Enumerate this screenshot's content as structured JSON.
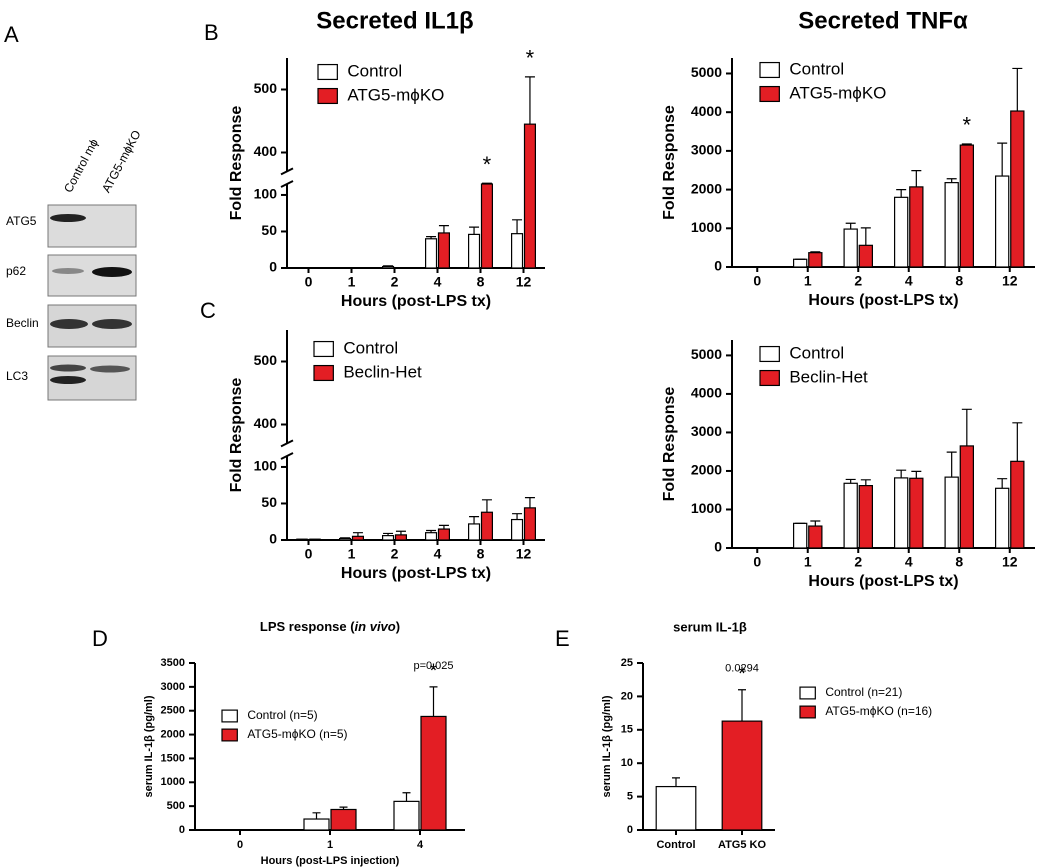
{
  "panel_labels": [
    "A",
    "B",
    "C",
    "D",
    "E"
  ],
  "blot": {
    "lanes": [
      "Control  mϕ",
      "ATG5-mϕKO"
    ],
    "rows": [
      "ATG5",
      "p62",
      "Beclin",
      "LC3"
    ]
  },
  "chart_data": [
    {
      "type": "bar",
      "title": "Secreted IL1β",
      "ylabel": "Fold Response",
      "xlabel": "Hours (post-LPS tx)",
      "categories": [
        "0",
        "1",
        "2",
        "4",
        "8",
        "12"
      ],
      "series": [
        {
          "name": "Control",
          "color": "#ffffff",
          "values": [
            0,
            0,
            2,
            40,
            46,
            47
          ],
          "errors": [
            0,
            0,
            1,
            3,
            10,
            19
          ]
        },
        {
          "name": "ATG5-mϕKO",
          "color": "#e31e24",
          "values": [
            0,
            0,
            0,
            48,
            115,
            445
          ],
          "errors": [
            0,
            0,
            0,
            10,
            15,
            75
          ]
        }
      ],
      "ylim": [
        0,
        550
      ],
      "ybreak": [
        115,
        370
      ],
      "yticks": [
        0,
        50,
        100,
        400,
        500
      ],
      "annotations": [
        {
          "text": "*",
          "category": "8",
          "series": "ATG5-mϕKO"
        },
        {
          "text": "*",
          "category": "12",
          "series": "ATG5-mϕKO"
        }
      ]
    },
    {
      "type": "bar",
      "title": "Secreted TNFα",
      "ylabel": "Fold Response",
      "xlabel": "Hours (post-LPS tx)",
      "categories": [
        "0",
        "1",
        "2",
        "4",
        "8",
        "12"
      ],
      "series": [
        {
          "name": "Control",
          "color": "#ffffff",
          "values": [
            0,
            200,
            980,
            1800,
            2180,
            2350
          ],
          "errors": [
            0,
            0,
            150,
            200,
            100,
            850
          ]
        },
        {
          "name": "ATG5-mϕKO",
          "color": "#e31e24",
          "values": [
            0,
            370,
            560,
            2070,
            3150,
            4030
          ],
          "errors": [
            0,
            20,
            450,
            420,
            30,
            1100
          ]
        }
      ],
      "ylim": [
        0,
        5400
      ],
      "yticks": [
        0,
        1000,
        2000,
        3000,
        4000,
        5000
      ],
      "annotations": [
        {
          "text": "*",
          "category": "8",
          "series": "ATG5-mϕKO"
        }
      ]
    },
    {
      "type": "bar",
      "ylabel": "Fold Response",
      "xlabel": "Hours (post-LPS tx)",
      "categories": [
        "0",
        "1",
        "2",
        "4",
        "8",
        "12"
      ],
      "series": [
        {
          "name": "Control",
          "color": "#ffffff",
          "values": [
            1,
            2,
            6,
            10,
            22,
            28
          ],
          "errors": [
            0,
            1,
            3,
            3,
            10,
            8
          ]
        },
        {
          "name": "Beclin-Het",
          "color": "#e31e24",
          "values": [
            1,
            5,
            7,
            15,
            38,
            44
          ],
          "errors": [
            0,
            5,
            5,
            5,
            17,
            14
          ]
        }
      ],
      "ylim": [
        0,
        550
      ],
      "ybreak": [
        115,
        370
      ],
      "yticks": [
        0,
        50,
        100,
        400,
        500
      ]
    },
    {
      "type": "bar",
      "ylabel": "Fold Response",
      "xlabel": "Hours (post-LPS tx)",
      "categories": [
        "0",
        "1",
        "2",
        "4",
        "8",
        "12"
      ],
      "series": [
        {
          "name": "Control",
          "color": "#ffffff",
          "values": [
            0,
            640,
            1680,
            1820,
            1840,
            1550
          ],
          "errors": [
            0,
            0,
            100,
            200,
            650,
            250
          ]
        },
        {
          "name": "Beclin-Het",
          "color": "#e31e24",
          "values": [
            0,
            570,
            1620,
            1810,
            2650,
            2250
          ],
          "errors": [
            0,
            130,
            150,
            180,
            950,
            1000
          ]
        }
      ],
      "ylim": [
        0,
        5400
      ],
      "yticks": [
        0,
        1000,
        2000,
        3000,
        4000,
        5000
      ]
    },
    {
      "type": "bar",
      "title_parts": [
        "LPS response (",
        "in vivo",
        ")"
      ],
      "ylabel": "serum IL-1β  (pg/ml)",
      "xlabel": "Hours (post-LPS injection)",
      "categories": [
        "0",
        "1",
        "4"
      ],
      "series": [
        {
          "name": "Control (n=5)",
          "color": "#ffffff",
          "values": [
            0,
            230,
            600
          ],
          "errors": [
            0,
            130,
            180
          ]
        },
        {
          "name": "ATG5-mϕKO (n=5)",
          "color": "#e31e24",
          "values": [
            0,
            430,
            2380
          ],
          "errors": [
            0,
            50,
            620
          ]
        }
      ],
      "ylim": [
        0,
        3500
      ],
      "yticks": [
        0,
        500,
        1000,
        1500,
        2000,
        2500,
        3000,
        3500
      ],
      "annotations": [
        {
          "text": "*",
          "category": "4",
          "series": "ATG5-mϕKO (n=5)"
        },
        {
          "text": "p=0.025",
          "category": "4",
          "series": "ATG5-mϕKO (n=5)"
        }
      ]
    },
    {
      "type": "bar",
      "title": "serum IL-1β",
      "ylabel": "serum IL-1β  (pg/ml)",
      "categories": [
        "Control",
        "ATG5 KO"
      ],
      "series": [
        {
          "name": "Control (n=21)",
          "color": "#ffffff",
          "values": [
            6.5,
            null
          ],
          "errors": [
            1.3,
            null
          ]
        },
        {
          "name": "ATG5-mϕKO (n=16)",
          "color": "#e31e24",
          "values": [
            null,
            16.3
          ],
          "errors": [
            null,
            4.7
          ]
        }
      ],
      "ylim": [
        0,
        25
      ],
      "yticks": [
        0,
        5,
        10,
        15,
        20,
        25
      ],
      "annotations": [
        {
          "text": "*",
          "category": "ATG5 KO",
          "series": "ATG5-mϕKO (n=16)"
        },
        {
          "text": "0.0294",
          "category": "ATG5 KO",
          "series": "ATG5-mϕKO (n=16)"
        }
      ]
    }
  ]
}
